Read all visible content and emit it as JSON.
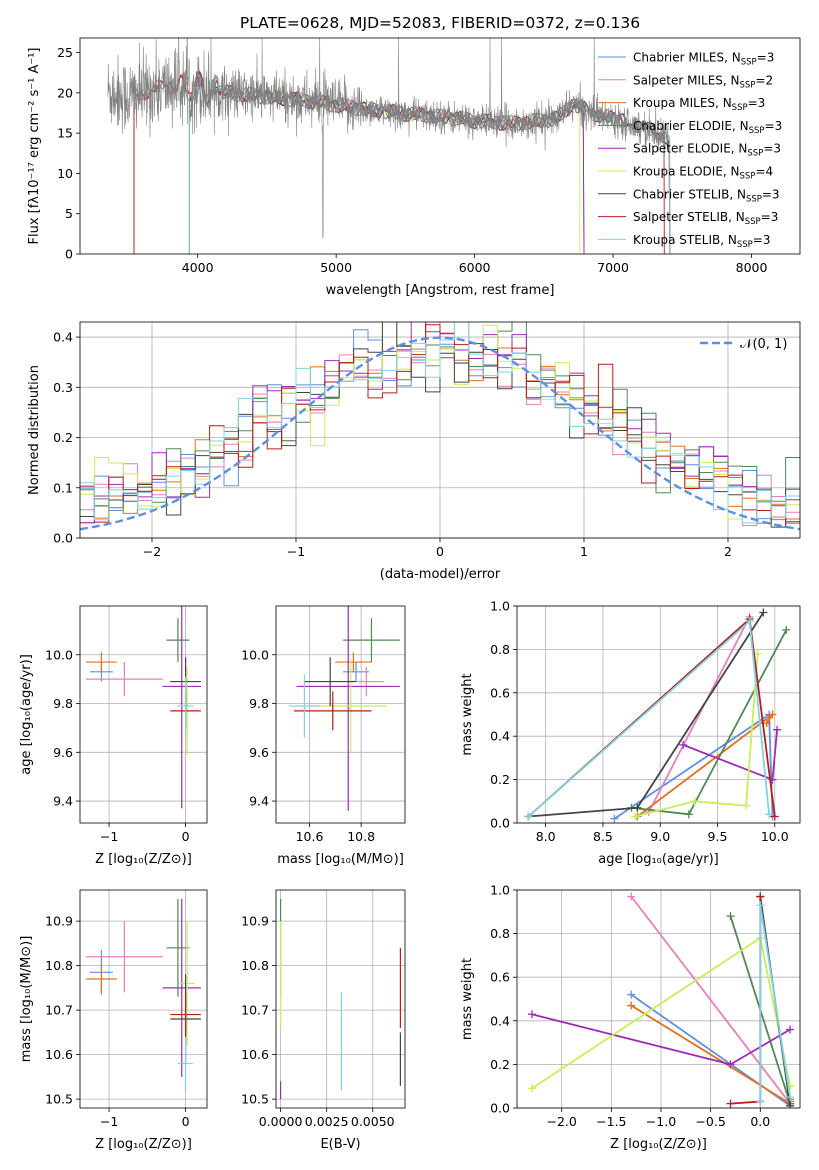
{
  "colors": {
    "Chabrier MILES": "#5f8fdf",
    "Salpeter MILES": "#e57fbf",
    "Kroupa MILES": "#e0701c",
    "Chabrier ELODIE": "#4f8a55",
    "Salpeter ELODIE": "#9a2db5",
    "Kroupa ELODIE": "#c8ee5a",
    "Chabrier STELIB": "#444444",
    "Salpeter STELIB": "#b81c1c",
    "Kroupa STELIB": "#80d3e4"
  },
  "chart_data": [
    {
      "id": "spectrum",
      "type": "line",
      "title": "PLATE=0628, MJD=52083, FIBERID=0372, z=0.136",
      "xlabel": "wavelength [Angstrom, rest frame]",
      "ylabel": "Flux [fλ10⁻¹⁷ erg cm⁻² s⁻¹ A⁻¹]",
      "xlim": [
        3150,
        8350
      ],
      "ylim": [
        0,
        26.8
      ],
      "xticks": [
        4000,
        5000,
        6000,
        7000,
        8000
      ],
      "yticks": [
        0,
        5,
        10,
        15,
        20,
        25
      ],
      "grid": false,
      "legend_position": "top-right",
      "legend": [
        {
          "name": "Chabrier MILES",
          "sub": "N",
          "subtext": "SSP",
          "tail": "=3"
        },
        {
          "name": "Salpeter MILES",
          "sub": "N",
          "subtext": "SSP",
          "tail": "=2"
        },
        {
          "name": "Kroupa MILES",
          "sub": "N",
          "subtext": "SSP",
          "tail": "=3"
        },
        {
          "name": "Chabrier ELODIE",
          "sub": "N",
          "subtext": "SSP",
          "tail": "=3"
        },
        {
          "name": "Salpeter ELODIE",
          "sub": "N",
          "subtext": "SSP",
          "tail": "=3"
        },
        {
          "name": "Kroupa ELODIE",
          "sub": "N",
          "subtext": "SSP",
          "tail": "=4"
        },
        {
          "name": "Chabrier STELIB",
          "sub": "N",
          "subtext": "SSP",
          "tail": "=3"
        },
        {
          "name": "Salpeter STELIB",
          "sub": "N",
          "subtext": "SSP",
          "tail": "=3"
        },
        {
          "name": "Kroupa STELIB",
          "sub": "N",
          "subtext": "SSP",
          "tail": "=3"
        }
      ],
      "observed_series": "gray",
      "observed_range": [
        3350,
        7400
      ],
      "continuum_points": [
        [
          3350,
          20.2
        ],
        [
          3500,
          19.5
        ],
        [
          3700,
          20.5
        ],
        [
          3900,
          21.0
        ],
        [
          4000,
          20.5
        ],
        [
          4200,
          20.0
        ],
        [
          4500,
          19.5
        ],
        [
          4800,
          19.0
        ],
        [
          5000,
          18.5
        ],
        [
          5200,
          18.0
        ],
        [
          5500,
          17.4
        ],
        [
          5800,
          17.0
        ],
        [
          6000,
          16.5
        ],
        [
          6300,
          16.2
        ],
        [
          6600,
          16.8
        ],
        [
          6700,
          18.6
        ],
        [
          6900,
          17.2
        ],
        [
          7100,
          16.5
        ],
        [
          7400,
          14.5
        ]
      ],
      "model_ranges": {
        "Chabrier MILES": [
          3540,
          7410
        ],
        "Salpeter MILES": [
          3540,
          7410
        ],
        "Kroupa MILES": [
          3540,
          7410
        ],
        "Chabrier ELODIE": [
          3940,
          6790
        ],
        "Salpeter ELODIE": [
          3940,
          6790
        ],
        "Kroupa ELODIE": [
          3940,
          6760
        ],
        "Chabrier STELIB": [
          3940,
          7410
        ],
        "Salpeter STELIB": [
          3540,
          7370
        ],
        "Kroupa STELIB": [
          3940,
          7410
        ]
      }
    },
    {
      "id": "residuals",
      "type": "area",
      "xlabel": "(data-model)/error",
      "ylabel": "Normed distribution",
      "xlim": [
        -2.5,
        2.5
      ],
      "ylim": [
        0,
        0.43
      ],
      "xticks": [
        -2,
        -1,
        0,
        1,
        2
      ],
      "yticks": [
        0.0,
        0.1,
        0.2,
        0.3,
        0.4
      ],
      "grid": true,
      "legend_position": "top-right",
      "legend": [
        "𝒩(0, 1)"
      ],
      "bin_width": 0.1,
      "reference_curve": "normal(0,1)"
    },
    {
      "id": "age-vs-Z",
      "type": "scatter",
      "xlabel": "Z [log₁₀(Z/Z⊙)]",
      "ylabel": "age  [log₁₀(age/yr)]",
      "xlim": [
        -1.38,
        0.28
      ],
      "ylim": [
        9.31,
        10.2
      ],
      "xticks": [
        -1,
        0
      ],
      "yticks": [
        9.4,
        9.6,
        9.8,
        10.0
      ],
      "grid": true,
      "points": [
        {
          "series": "Chabrier MILES",
          "x": -1.1,
          "y": 9.93,
          "xerr": 0.15,
          "yerr": 0.04
        },
        {
          "series": "Salpeter MILES",
          "x": -0.8,
          "y": 9.9,
          "xerr": 0.5,
          "yerr": 0.07
        },
        {
          "series": "Kroupa MILES",
          "x": -1.1,
          "y": 9.97,
          "xerr": 0.2,
          "yerr": 0.04
        },
        {
          "series": "Chabrier ELODIE",
          "x": -0.1,
          "y": 10.06,
          "xerr": 0.15,
          "yerr": 0.09
        },
        {
          "series": "Salpeter ELODIE",
          "x": -0.05,
          "y": 9.87,
          "xerr": 0.25,
          "yerr": 0.5
        },
        {
          "series": "Kroupa ELODIE",
          "x": 0.02,
          "y": 9.77,
          "xerr": 0.1,
          "yerr": 0.18
        },
        {
          "series": "Chabrier STELIB",
          "x": 0.0,
          "y": 9.89,
          "xerr": 0.2,
          "yerr": 0.1
        },
        {
          "series": "Salpeter STELIB",
          "x": 0.0,
          "y": 9.77,
          "xerr": 0.2,
          "yerr": 0.07
        },
        {
          "series": "Kroupa STELIB",
          "x": 0.0,
          "y": 9.79,
          "xerr": 0.1,
          "yerr": 0.12
        }
      ]
    },
    {
      "id": "age-vs-mass",
      "type": "scatter",
      "xlabel": "mass [log₁₀(M/M⊙)]",
      "ylabel": "",
      "xlim": [
        10.47,
        10.97
      ],
      "ylim": [
        9.31,
        10.2
      ],
      "xticks": [
        10.6,
        10.8
      ],
      "yticks": [
        9.4,
        9.6,
        9.8,
        10.0
      ],
      "grid": true,
      "points": [
        {
          "series": "Chabrier MILES",
          "x": 10.78,
          "y": 9.93,
          "xerr": 0.05,
          "yerr": 0.04
        },
        {
          "series": "Salpeter MILES",
          "x": 10.82,
          "y": 9.89,
          "xerr": 0.07,
          "yerr": 0.06
        },
        {
          "series": "Kroupa MILES",
          "x": 10.77,
          "y": 9.97,
          "xerr": 0.07,
          "yerr": 0.04
        },
        {
          "series": "Chabrier ELODIE",
          "x": 10.84,
          "y": 10.06,
          "xerr": 0.11,
          "yerr": 0.09
        },
        {
          "series": "Salpeter ELODIE",
          "x": 10.75,
          "y": 9.87,
          "xerr": 0.2,
          "yerr": 0.51
        },
        {
          "series": "Kroupa ELODIE",
          "x": 10.76,
          "y": 9.79,
          "xerr": 0.14,
          "yerr": 0.19
        },
        {
          "series": "Chabrier STELIB",
          "x": 10.68,
          "y": 9.89,
          "xerr": 0.1,
          "yerr": 0.1
        },
        {
          "series": "Salpeter STELIB",
          "x": 10.69,
          "y": 9.77,
          "xerr": 0.15,
          "yerr": 0.08
        },
        {
          "series": "Kroupa STELIB",
          "x": 10.58,
          "y": 9.79,
          "xerr": 0.06,
          "yerr": 0.13
        }
      ]
    },
    {
      "id": "weight-vs-age",
      "type": "line",
      "xlabel": "age  [log₁₀(age/yr)]",
      "ylabel": "mass weight",
      "xlim": [
        7.75,
        10.22
      ],
      "ylim": [
        0,
        1
      ],
      "xticks": [
        8.0,
        8.5,
        9.0,
        9.5,
        10.0
      ],
      "yticks": [
        0.0,
        0.2,
        0.4,
        0.6,
        0.8,
        1.0
      ],
      "grid": true,
      "series": [
        {
          "name": "Chabrier MILES",
          "points": [
            [
              8.6,
              0.02
            ],
            [
              9.95,
              0.5
            ],
            [
              9.98,
              0.03
            ]
          ]
        },
        {
          "name": "Salpeter MILES",
          "points": [
            [
              8.9,
              0.05
            ],
            [
              9.78,
              0.95
            ]
          ]
        },
        {
          "name": "Kroupa MILES",
          "points": [
            [
              8.8,
              0.03
            ],
            [
              9.98,
              0.5
            ],
            [
              9.93,
              0.46
            ]
          ]
        },
        {
          "name": "Chabrier ELODIE",
          "points": [
            [
              8.75,
              0.07
            ],
            [
              9.25,
              0.04
            ],
            [
              10.1,
              0.89
            ]
          ]
        },
        {
          "name": "Salpeter ELODIE",
          "points": [
            [
              9.2,
              0.36
            ],
            [
              9.98,
              0.2
            ],
            [
              10.02,
              0.43
            ]
          ]
        },
        {
          "name": "Kroupa ELODIE",
          "points": [
            [
              8.78,
              0.03
            ],
            [
              9.3,
              0.1
            ],
            [
              9.75,
              0.08
            ],
            [
              9.85,
              0.78
            ]
          ]
        },
        {
          "name": "Chabrier STELIB",
          "points": [
            [
              7.85,
              0.03
            ],
            [
              8.8,
              0.07
            ],
            [
              9.9,
              0.97
            ]
          ]
        },
        {
          "name": "Salpeter STELIB",
          "points": [
            [
              7.85,
              0.03
            ],
            [
              9.78,
              0.94
            ],
            [
              10.0,
              0.03
            ]
          ]
        },
        {
          "name": "Kroupa STELIB",
          "points": [
            [
              7.85,
              0.03
            ],
            [
              9.78,
              0.93
            ],
            [
              9.95,
              0.04
            ]
          ]
        }
      ]
    },
    {
      "id": "mass-vs-Z",
      "type": "scatter",
      "xlabel": "Z [log₁₀(Z/Z⊙)]",
      "ylabel": "mass [log₁₀(M/M⊙)]",
      "xlim": [
        -1.38,
        0.28
      ],
      "ylim": [
        10.48,
        10.97
      ],
      "xticks": [
        -1,
        0
      ],
      "yticks": [
        10.5,
        10.6,
        10.7,
        10.8,
        10.9
      ],
      "grid": true,
      "points": [
        {
          "series": "Chabrier MILES",
          "x": -1.1,
          "y": 10.785,
          "xerr": 0.15,
          "yerr": 0.05
        },
        {
          "series": "Salpeter MILES",
          "x": -0.8,
          "y": 10.82,
          "xerr": 0.5,
          "yerr": 0.08
        },
        {
          "series": "Kroupa MILES",
          "x": -1.1,
          "y": 10.77,
          "xerr": 0.2,
          "yerr": 0.03
        },
        {
          "series": "Chabrier ELODIE",
          "x": -0.1,
          "y": 10.84,
          "xerr": 0.15,
          "yerr": 0.11
        },
        {
          "series": "Salpeter ELODIE",
          "x": -0.05,
          "y": 10.75,
          "xerr": 0.25,
          "yerr": 0.2
        },
        {
          "series": "Kroupa ELODIE",
          "x": 0.02,
          "y": 10.76,
          "xerr": 0.1,
          "yerr": 0.14
        },
        {
          "series": "Chabrier STELIB",
          "x": 0.0,
          "y": 10.68,
          "xerr": 0.2,
          "yerr": 0.1
        },
        {
          "series": "Salpeter STELIB",
          "x": 0.0,
          "y": 10.69,
          "xerr": 0.2,
          "yerr": 0.05
        },
        {
          "series": "Kroupa STELIB",
          "x": 0.0,
          "y": 10.58,
          "xerr": 0.1,
          "yerr": 0.06
        }
      ]
    },
    {
      "id": "mass-vs-ebv",
      "type": "scatter",
      "xlabel": "E(B-V)",
      "ylabel": "",
      "xlim": [
        -0.00025,
        0.00675
      ],
      "ylim": [
        10.48,
        10.97
      ],
      "xticks": [
        0.0,
        0.0025,
        0.005
      ],
      "xticklabels": [
        "0.0000",
        "0.0025",
        "0.0050"
      ],
      "yticks": [
        10.5,
        10.6,
        10.7,
        10.8,
        10.9
      ],
      "grid": true,
      "points": [
        {
          "series": "Chabrier ELODIE",
          "x": 0.0,
          "y": 10.84,
          "xerr": 0,
          "yerr": 0.11
        },
        {
          "series": "Kroupa ELODIE",
          "x": 0.0,
          "y": 10.78,
          "xerr": 0,
          "yerr": 0.12
        },
        {
          "series": "Salpeter ELODIE",
          "x": 0.0,
          "y": 10.52,
          "xerr": 0,
          "yerr": 0.02
        },
        {
          "series": "Kroupa STELIB",
          "x": 0.0033,
          "y": 10.63,
          "xerr": 0,
          "yerr": 0.11
        },
        {
          "series": "Salpeter STELIB",
          "x": 0.0065,
          "y": 10.75,
          "xerr": 0,
          "yerr": 0.09
        },
        {
          "series": "Chabrier STELIB",
          "x": 0.0065,
          "y": 10.59,
          "xerr": 0,
          "yerr": 0.06
        }
      ]
    },
    {
      "id": "weight-vs-Z",
      "type": "line",
      "xlabel": "Z [log₁₀(Z/Z⊙)]",
      "ylabel": "mass weight",
      "xlim": [
        -2.45,
        0.4
      ],
      "ylim": [
        0,
        1
      ],
      "xticks": [
        -2.0,
        -1.5,
        -1.0,
        -0.5,
        0.0
      ],
      "yticks": [
        0.0,
        0.2,
        0.4,
        0.6,
        0.8,
        1.0
      ],
      "grid": true,
      "series": [
        {
          "name": "Chabrier MILES",
          "points": [
            [
              -1.3,
              0.52
            ],
            [
              0.3,
              0.01
            ],
            [
              0.3,
              0.03
            ]
          ]
        },
        {
          "name": "Salpeter MILES",
          "points": [
            [
              -1.3,
              0.97
            ],
            [
              0.3,
              0.02
            ]
          ]
        },
        {
          "name": "Kroupa MILES",
          "points": [
            [
              -1.3,
              0.47
            ],
            [
              0.3,
              0.02
            ],
            [
              0.3,
              0.04
            ]
          ]
        },
        {
          "name": "Chabrier ELODIE",
          "points": [
            [
              -0.3,
              0.88
            ],
            [
              0.3,
              0.02
            ]
          ]
        },
        {
          "name": "Salpeter ELODIE",
          "points": [
            [
              -2.3,
              0.43
            ],
            [
              -0.3,
              0.2
            ],
            [
              0.3,
              0.36
            ]
          ]
        },
        {
          "name": "Kroupa ELODIE",
          "points": [
            [
              -2.3,
              0.09
            ],
            [
              0.0,
              0.78
            ],
            [
              0.3,
              0.1
            ]
          ]
        },
        {
          "name": "Chabrier STELIB",
          "points": [
            [
              0.0,
              0.97
            ],
            [
              0.3,
              0.01
            ]
          ]
        },
        {
          "name": "Salpeter STELIB",
          "points": [
            [
              -0.3,
              0.02
            ],
            [
              0.0,
              0.03
            ],
            [
              0.0,
              0.97
            ]
          ]
        },
        {
          "name": "Kroupa STELIB",
          "points": [
            [
              0.0,
              0.03
            ],
            [
              0.0,
              0.93
            ],
            [
              0.3,
              0.05
            ]
          ]
        }
      ]
    }
  ]
}
